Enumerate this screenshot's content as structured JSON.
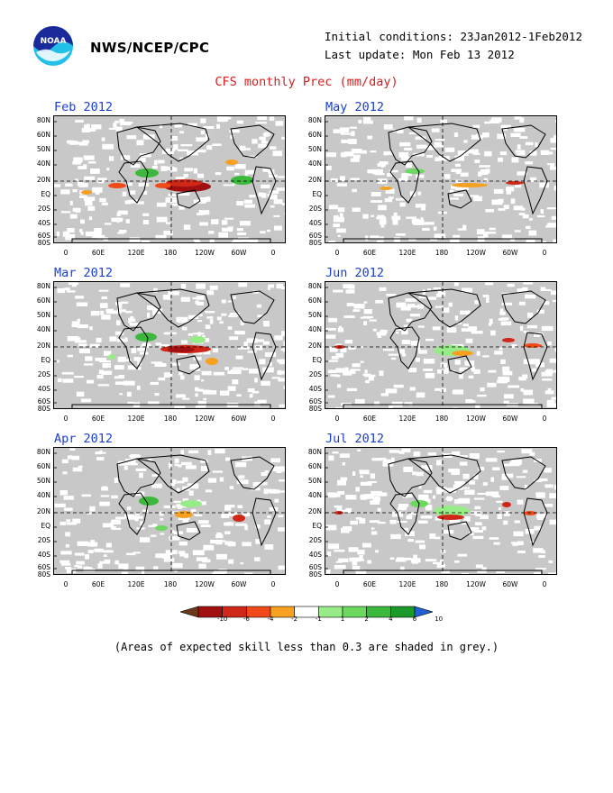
{
  "header": {
    "agency": "NWS/NCEP/CPC",
    "initial_conditions": "Initial conditions: 23Jan2012-1Feb2012",
    "last_update": "Last update: Mon Feb 13 2012",
    "title": "CFS monthly Prec (mm/day)"
  },
  "logo": {
    "text": "NOAA"
  },
  "axes": {
    "lat_labels": [
      "80N",
      "60N",
      "50N",
      "40N",
      "20N",
      "EQ",
      "20S",
      "40S",
      "60S",
      "80S"
    ],
    "lon_labels": [
      "0",
      "60E",
      "120E",
      "180",
      "120W",
      "60W",
      "0"
    ]
  },
  "panels": [
    {
      "title": "Feb 2012"
    },
    {
      "title": "May 2012"
    },
    {
      "title": "Mar 2012"
    },
    {
      "title": "Jun 2012"
    },
    {
      "title": "Apr 2012"
    },
    {
      "title": "Jul 2012"
    }
  ],
  "colorbar": {
    "labels": [
      "-10",
      "-6",
      "-4",
      "-2",
      "-1",
      "1",
      "2",
      "4",
      "6",
      "10"
    ],
    "colors": [
      "#6b3a1a",
      "#a01010",
      "#d02818",
      "#f04a1a",
      "#f8a020",
      "#ffffff",
      "#98ec88",
      "#6cd860",
      "#3cb83c",
      "#1a9a2a",
      "#2060d0"
    ]
  },
  "footer": {
    "note": "(Areas of expected skill less than 0.3 are shaded in grey.)"
  }
}
